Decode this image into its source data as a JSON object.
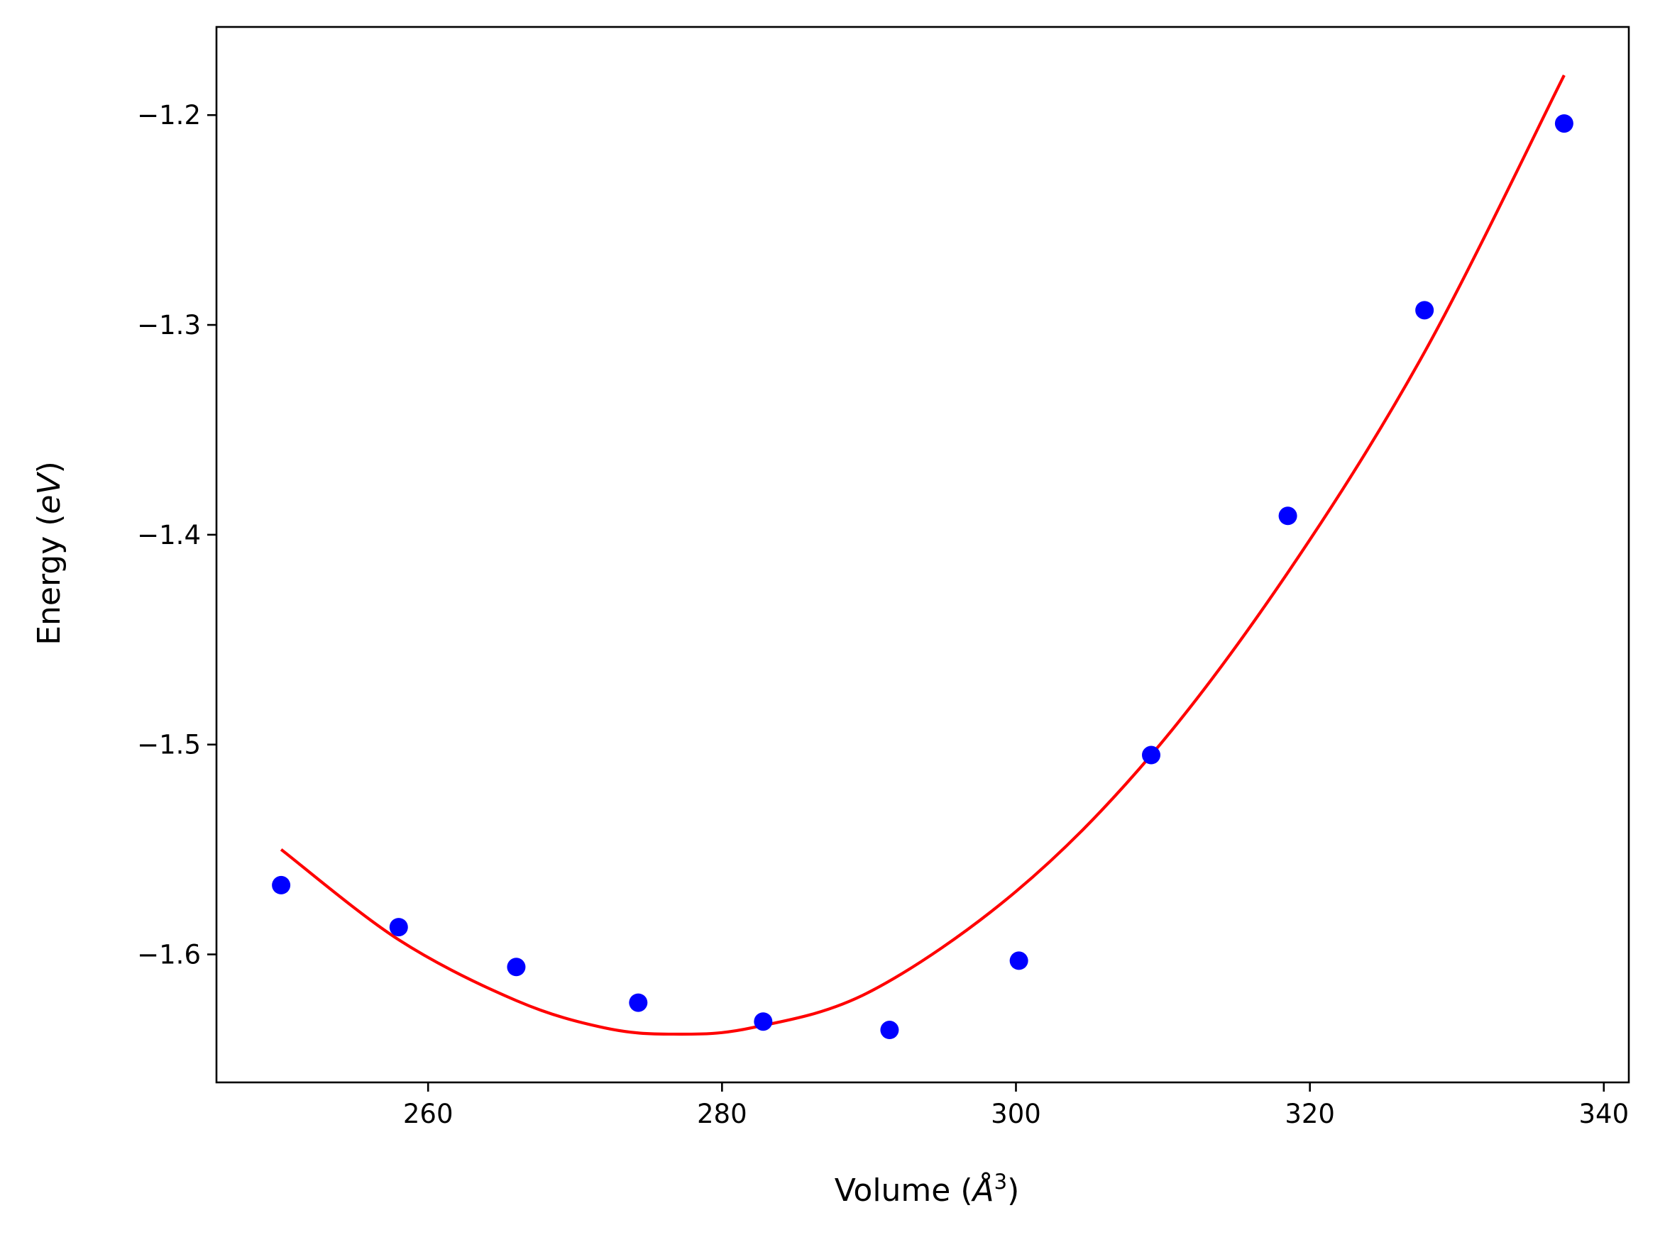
{
  "chart_data": {
    "type": "scatter",
    "title": "",
    "xlabel": {
      "prefix": "Volume (",
      "symbol": "Å",
      "exponent": "3",
      "suffix": ")"
    },
    "ylabel": {
      "prefix": "Energy (",
      "symbol": "eV",
      "suffix": ")"
    },
    "xlim": [
      245.6,
      341.7
    ],
    "ylim": [
      -1.661,
      -1.158
    ],
    "xticks": [
      260,
      280,
      300,
      320,
      340
    ],
    "xtick_labels": [
      "260",
      "280",
      "300",
      "320",
      "340"
    ],
    "yticks": [
      -1.2,
      -1.3,
      -1.4,
      -1.5,
      -1.6
    ],
    "ytick_labels": [
      "−1.2",
      "−1.3",
      "−1.4",
      "−1.5",
      "−1.6"
    ],
    "grid": false,
    "legend": "none",
    "series": [
      {
        "kind": "points",
        "color": "#0000ff",
        "x": [
          250.0,
          258.0,
          266.0,
          274.3,
          282.8,
          291.4,
          300.2,
          309.2,
          318.5,
          327.8,
          337.3
        ],
        "y": [
          -1.567,
          -1.587,
          -1.606,
          -1.623,
          -1.632,
          -1.636,
          -1.603,
          -1.505,
          -1.391,
          -1.293,
          -1.204
        ]
      },
      {
        "kind": "fit-curve",
        "color": "#ff0000",
        "x": [
          250.0,
          258.0,
          266.0,
          272.0,
          276.7,
          282.0,
          290.0,
          300.0,
          309.2,
          318.5,
          327.8,
          337.3
        ],
        "y": [
          -1.55,
          -1.593,
          -1.622,
          -1.635,
          -1.638,
          -1.635,
          -1.618,
          -1.57,
          -1.505,
          -1.418,
          -1.313,
          -1.181
        ]
      }
    ]
  }
}
